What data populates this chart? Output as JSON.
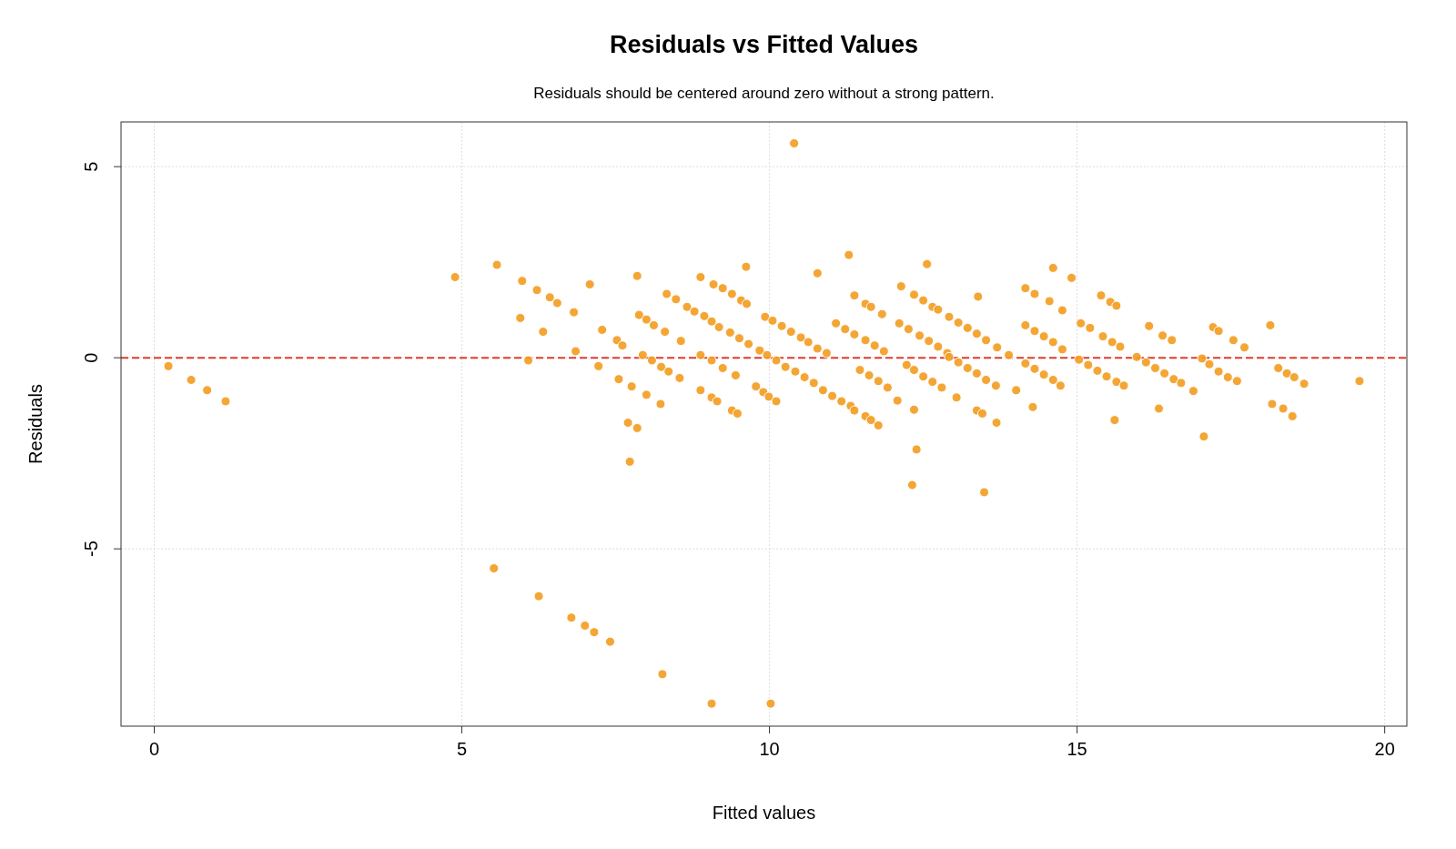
{
  "chart_data": {
    "type": "scatter",
    "title": "Residuals vs Fitted Values",
    "subtitle": "Residuals should be centered around zero without a strong pattern.",
    "xlabel": "Fitted values",
    "ylabel": "Residuals",
    "xlim": [
      -0.54,
      20.36
    ],
    "ylim": [
      -9.64,
      6.17
    ],
    "xticks": [
      0,
      5,
      10,
      15,
      20
    ],
    "yticks": [
      -5,
      0,
      5
    ],
    "grid": true,
    "marker": "circle",
    "ref_lines": [
      {
        "axis": "y",
        "value": 0,
        "color": "#e03c2c",
        "line_style": "dashed"
      }
    ],
    "series": [
      {
        "color": "#f39c1f",
        "x": [
          0.23,
          0.6,
          0.86,
          1.16,
          4.89,
          5.57,
          5.98,
          5.95,
          6.08,
          6.22,
          6.32,
          6.43,
          6.55,
          6.82,
          6.85,
          7.08,
          7.22,
          7.28,
          7.52,
          7.61,
          7.55,
          7.76,
          7.7,
          7.85,
          7.73,
          7.85,
          7.88,
          8.0,
          8.12,
          8.3,
          7.94,
          8.09,
          8.0,
          8.23,
          8.24,
          8.36,
          8.54,
          8.33,
          8.48,
          8.66,
          8.78,
          8.56,
          8.88,
          8.88,
          9.06,
          9.24,
          9.45,
          8.88,
          9.06,
          9.15,
          9.39,
          9.48,
          8.94,
          9.06,
          9.18,
          9.36,
          9.51,
          9.66,
          9.84,
          9.09,
          9.24,
          9.39,
          9.54,
          9.63,
          9.62,
          9.93,
          10.05,
          10.2,
          10.35,
          10.51,
          9.78,
          9.9,
          9.99,
          10.11,
          9.96,
          10.11,
          10.26,
          10.42,
          10.57,
          10.72,
          10.87,
          11.02,
          11.17,
          11.32,
          11.38,
          10.4,
          10.78,
          10.63,
          10.78,
          10.93,
          11.29,
          11.38,
          11.56,
          11.65,
          11.83,
          11.08,
          11.23,
          11.38,
          11.56,
          11.71,
          11.86,
          11.47,
          11.62,
          11.77,
          11.92,
          11.56,
          11.65,
          11.77,
          12.08,
          12.14,
          12.11,
          12.26,
          12.44,
          12.59,
          12.74,
          12.89,
          12.23,
          12.35,
          12.5,
          12.65,
          12.8,
          12.35,
          12.39,
          12.32,
          12.35,
          12.5,
          12.65,
          12.74,
          12.56,
          12.92,
          13.07,
          13.22,
          13.37,
          13.52,
          13.68,
          12.92,
          13.07,
          13.22,
          13.37,
          13.52,
          13.7,
          13.04,
          13.37,
          13.46,
          13.39,
          13.49,
          13.69,
          13.89,
          14.01,
          14.16,
          14.31,
          14.16,
          14.31,
          14.46,
          14.61,
          14.76,
          14.16,
          14.31,
          14.46,
          14.61,
          14.73,
          14.28,
          14.55,
          14.61,
          14.76,
          14.91,
          15.06,
          15.21,
          15.03,
          15.18,
          15.33,
          15.48,
          15.64,
          15.76,
          15.39,
          15.54,
          15.64,
          15.42,
          15.57,
          15.7,
          15.61,
          15.97,
          16.12,
          16.27,
          16.42,
          16.57,
          16.69,
          16.17,
          16.39,
          16.54,
          16.33,
          16.89,
          17.03,
          17.15,
          17.3,
          17.45,
          17.6,
          17.06,
          17.21,
          17.3,
          17.54,
          17.72,
          18.14,
          18.17,
          18.27,
          18.41,
          18.53,
          18.69,
          18.35,
          18.5,
          19.59,
          5.52,
          6.25,
          6.78,
          7.0,
          7.15,
          7.41,
          8.26,
          9.06,
          10.02
        ],
        "values": [
          -0.22,
          -0.58,
          -0.85,
          -1.14,
          2.11,
          2.43,
          2.01,
          1.04,
          -0.07,
          1.77,
          0.68,
          1.58,
          1.43,
          1.19,
          0.17,
          1.92,
          -0.22,
          0.73,
          0.46,
          0.32,
          -0.56,
          -0.75,
          -1.7,
          -1.84,
          -2.72,
          2.14,
          1.12,
          1.0,
          0.85,
          0.68,
          0.07,
          -0.07,
          -0.97,
          -1.21,
          -0.24,
          -0.36,
          -0.53,
          1.67,
          1.53,
          1.33,
          1.21,
          0.44,
          2.11,
          0.07,
          -0.07,
          -0.27,
          -0.46,
          -0.85,
          -1.04,
          -1.14,
          -1.38,
          -1.46,
          1.09,
          0.95,
          0.8,
          0.66,
          0.51,
          0.36,
          0.19,
          1.92,
          1.82,
          1.67,
          1.5,
          1.41,
          2.38,
          1.07,
          0.97,
          0.83,
          0.68,
          0.53,
          -0.75,
          -0.9,
          -1.02,
          -1.14,
          0.07,
          -0.07,
          -0.24,
          -0.36,
          -0.51,
          -0.66,
          -0.85,
          -1.0,
          -1.14,
          -1.26,
          -1.38,
          5.61,
          2.21,
          0.41,
          0.24,
          0.12,
          2.69,
          1.63,
          1.41,
          1.33,
          1.14,
          0.9,
          0.75,
          0.61,
          0.46,
          0.32,
          0.17,
          -0.32,
          -0.46,
          -0.61,
          -0.78,
          -1.53,
          -1.63,
          -1.77,
          -1.12,
          1.87,
          0.9,
          0.75,
          0.58,
          0.44,
          0.29,
          0.12,
          -0.19,
          -0.32,
          -0.49,
          -0.63,
          -0.78,
          -1.36,
          -2.4,
          -3.33,
          1.65,
          1.5,
          1.33,
          1.26,
          2.45,
          0.02,
          -0.12,
          -0.27,
          -0.41,
          -0.58,
          -0.73,
          1.07,
          0.92,
          0.78,
          0.63,
          0.46,
          0.27,
          -1.04,
          -1.38,
          -1.46,
          1.6,
          -3.52,
          -1.7,
          0.07,
          -0.85,
          1.82,
          1.67,
          0.85,
          0.7,
          0.56,
          0.41,
          0.22,
          -0.15,
          -0.29,
          -0.44,
          -0.58,
          -0.73,
          -1.29,
          1.48,
          2.35,
          1.24,
          2.09,
          0.9,
          0.78,
          -0.05,
          -0.19,
          -0.34,
          -0.49,
          -0.63,
          -0.73,
          1.63,
          1.46,
          1.36,
          0.56,
          0.41,
          0.29,
          -1.63,
          0.02,
          -0.12,
          -0.27,
          -0.41,
          -0.56,
          -0.66,
          0.83,
          0.58,
          0.46,
          -1.33,
          -0.87,
          -0.02,
          -0.17,
          -0.36,
          -0.51,
          -0.61,
          -2.06,
          0.8,
          0.7,
          0.46,
          0.27,
          0.85,
          -1.21,
          -0.27,
          -0.41,
          -0.51,
          -0.68,
          -1.33,
          -1.53,
          -0.61,
          -5.51,
          -6.24,
          -6.8,
          -7.01,
          -7.18,
          -7.43,
          -8.28,
          -9.05,
          -9.05
        ]
      }
    ]
  }
}
